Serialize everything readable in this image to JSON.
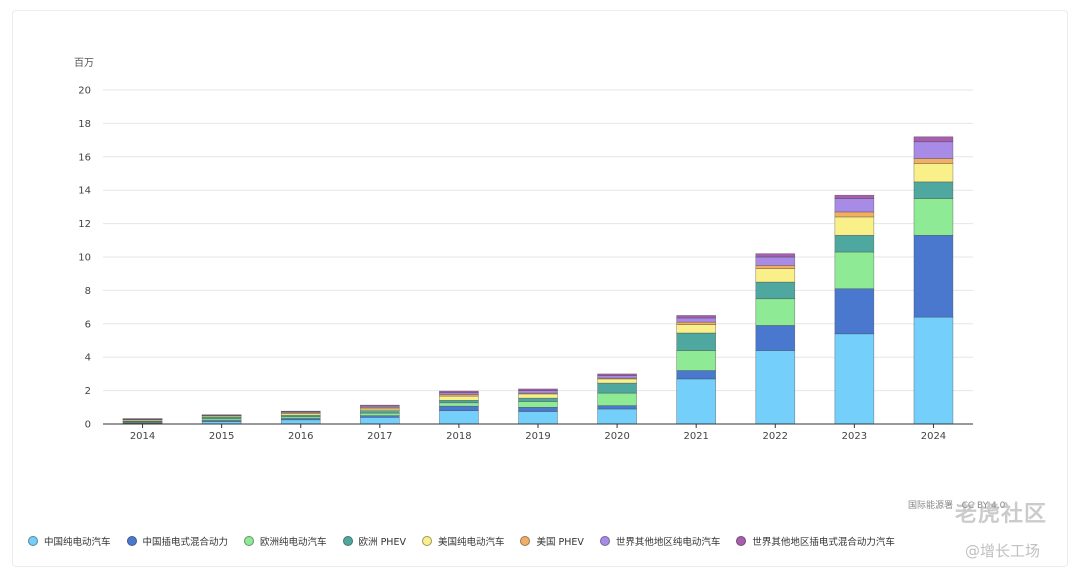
{
  "watermarks": [
    "老虎社区",
    "@增长工场"
  ],
  "source_text": "国际能源署 · CC BY 4.0",
  "colors": {
    "cn_bev": "#74CFFA",
    "cn_phev": "#4A78CF",
    "eu_bev": "#8FEA96",
    "eu_phev": "#4FA8A0",
    "us_bev": "#FAF08A",
    "us_phev": "#F2AE64",
    "row_bev": "#A88BE6",
    "row_phev": "#A65EAE"
  },
  "chart_data": {
    "type": "bar",
    "stacked": true,
    "ylabel": "百万",
    "ylim": [
      0,
      20
    ],
    "yticks": [
      0,
      2,
      4,
      6,
      8,
      10,
      12,
      14,
      16,
      18,
      20
    ],
    "grid": true,
    "legend_position": "bottom",
    "categories": [
      "2014",
      "2015",
      "2016",
      "2017",
      "2018",
      "2019",
      "2020",
      "2021",
      "2022",
      "2023",
      "2024"
    ],
    "series": [
      {
        "name": "中国纯电动汽车",
        "color_key": "cn_bev",
        "values": [
          0.05,
          0.15,
          0.25,
          0.4,
          0.8,
          0.75,
          0.9,
          2.7,
          4.4,
          5.4,
          6.4
        ]
      },
      {
        "name": "中国插电式混合动力",
        "color_key": "cn_phev",
        "values": [
          0.03,
          0.06,
          0.08,
          0.1,
          0.27,
          0.25,
          0.2,
          0.5,
          1.5,
          2.7,
          4.9
        ]
      },
      {
        "name": "欧洲纯电动汽车",
        "color_key": "eu_bev",
        "values": [
          0.05,
          0.1,
          0.1,
          0.15,
          0.2,
          0.35,
          0.75,
          1.2,
          1.6,
          2.2,
          2.2
        ]
      },
      {
        "name": "欧洲 PHEV",
        "color_key": "eu_phev",
        "values": [
          0.05,
          0.1,
          0.1,
          0.15,
          0.15,
          0.2,
          0.6,
          1.05,
          1.0,
          1.0,
          1.0
        ]
      },
      {
        "name": "美国纯电动汽车",
        "color_key": "us_bev",
        "values": [
          0.07,
          0.07,
          0.1,
          0.1,
          0.25,
          0.25,
          0.25,
          0.5,
          0.8,
          1.1,
          1.1
        ]
      },
      {
        "name": "美国 PHEV",
        "color_key": "us_phev",
        "values": [
          0.05,
          0.05,
          0.07,
          0.1,
          0.1,
          0.05,
          0.05,
          0.15,
          0.2,
          0.3,
          0.3
        ]
      },
      {
        "name": "世界其他地区纯电动汽车",
        "color_key": "row_bev",
        "values": [
          0.01,
          0.01,
          0.05,
          0.08,
          0.1,
          0.15,
          0.15,
          0.25,
          0.5,
          0.8,
          1.0
        ]
      },
      {
        "name": "世界其他地区插电式混合动力汽车",
        "color_key": "row_phev",
        "values": [
          0.01,
          0.01,
          0.02,
          0.05,
          0.1,
          0.1,
          0.1,
          0.15,
          0.2,
          0.2,
          0.3
        ]
      }
    ]
  }
}
